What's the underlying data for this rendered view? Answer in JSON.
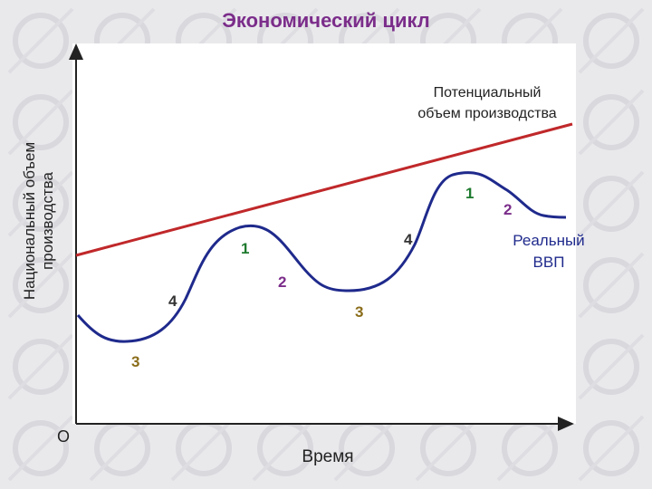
{
  "title": "Экономический цикл",
  "y_axis_label": [
    "Национальный объем",
    "производства"
  ],
  "x_axis_label": "Время",
  "origin_label": "О",
  "potential_label": [
    "Потенциальный",
    "объем производства"
  ],
  "real_gdp_label": [
    "Реальный",
    "ВВП"
  ],
  "phase_labels": [
    {
      "text": "3",
      "color": "#8a6d1a"
    },
    {
      "text": "4",
      "color": "#333333"
    },
    {
      "text": "1",
      "color": "#1e7a2e"
    },
    {
      "text": "2",
      "color": "#7b2d8a"
    },
    {
      "text": "3",
      "color": "#8a6d1a"
    },
    {
      "text": "4",
      "color": "#333333"
    },
    {
      "text": "1",
      "color": "#1e7a2e"
    },
    {
      "text": "2",
      "color": "#7b2d8a"
    }
  ],
  "colors": {
    "title": "#7b2d8a",
    "potential_line": "#c0282a",
    "real_gdp_curve": "#1f2a8c",
    "axis": "#222222"
  }
}
